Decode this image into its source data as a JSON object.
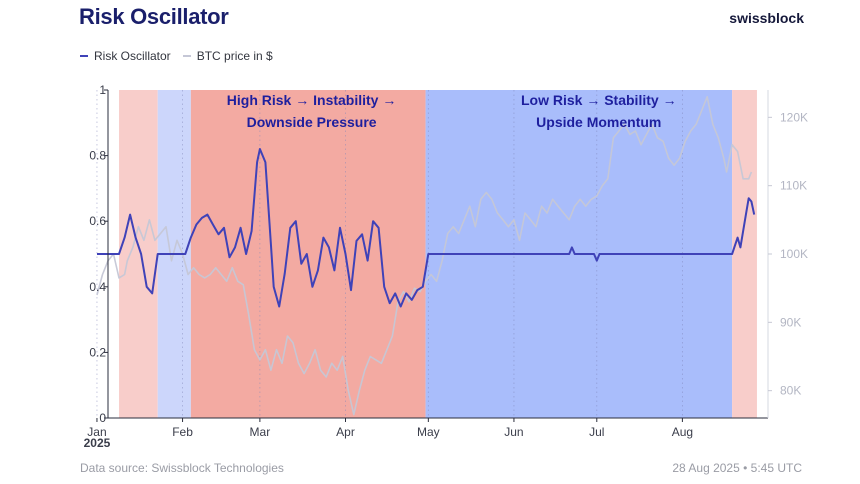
{
  "header": {
    "title": "Risk Oscillator",
    "brand": "swissblock"
  },
  "legend": [
    {
      "label": "Risk Oscillator",
      "color": "#3f42b8"
    },
    {
      "label": "BTC price in $",
      "color": "#c5c7d6"
    }
  ],
  "footer": {
    "source": "Data source: Swissblock Technologies",
    "timestamp": "28 Aug 2025 • 5:45 UTC"
  },
  "chart_data": {
    "type": "line",
    "title": "Risk Oscillator",
    "x_range": [
      "2025-01-01",
      "2025-08-28"
    ],
    "y_left": {
      "min": 0,
      "max": 1,
      "ticks": [
        0,
        0.2,
        0.4,
        0.6,
        0.8,
        1
      ],
      "tick_labels": [
        "0",
        "0.2",
        "0.4",
        "0.6",
        "0.8",
        "1"
      ]
    },
    "y_right": {
      "min": 76000,
      "max": 124000,
      "ticks": [
        80000,
        90000,
        100000,
        110000,
        120000
      ],
      "tick_labels": [
        "80K",
        "90K",
        "100K",
        "110K",
        "120K"
      ]
    },
    "x_ticks": [
      {
        "day": 0,
        "label": "Jan",
        "sub": "2025"
      },
      {
        "day": 31,
        "label": "Feb"
      },
      {
        "day": 59,
        "label": "Mar"
      },
      {
        "day": 90,
        "label": "Apr"
      },
      {
        "day": 120,
        "label": "May"
      },
      {
        "day": 151,
        "label": "Jun"
      },
      {
        "day": 181,
        "label": "Jul"
      },
      {
        "day": 212,
        "label": "Aug"
      }
    ],
    "regimes": [
      {
        "start": 0,
        "end": 8,
        "color": "#ccd6fb"
      },
      {
        "start": 8,
        "end": 22,
        "color": "#f8cdca"
      },
      {
        "start": 22,
        "end": 34,
        "color": "#ccd6fb"
      },
      {
        "start": 34,
        "end": 119,
        "color": "#f3aaa2"
      },
      {
        "start": 119,
        "end": 230,
        "color": "#a9bdfb"
      },
      {
        "start": 230,
        "end": 239,
        "color": "#f8cdca"
      }
    ],
    "annotations": [
      {
        "lines": [
          "High Risk → Instability →",
          "Downside Pressure"
        ],
        "center_day": 77,
        "color": "#1e1f9e"
      },
      {
        "lines": [
          "Low Risk → Stability →",
          "Upside Momentum"
        ],
        "center_day": 181,
        "color": "#1e1f9e"
      }
    ],
    "series": [
      {
        "name": "Risk Oscillator",
        "axis": "left",
        "color": "#3f42b8",
        "points": [
          [
            0,
            0.5
          ],
          [
            8,
            0.5
          ],
          [
            10,
            0.55
          ],
          [
            12,
            0.62
          ],
          [
            14,
            0.55
          ],
          [
            16,
            0.5
          ],
          [
            18,
            0.4
          ],
          [
            20,
            0.38
          ],
          [
            22,
            0.5
          ],
          [
            32,
            0.5
          ],
          [
            34,
            0.55
          ],
          [
            36,
            0.59
          ],
          [
            38,
            0.61
          ],
          [
            40,
            0.62
          ],
          [
            42,
            0.59
          ],
          [
            44,
            0.56
          ],
          [
            46,
            0.58
          ],
          [
            48,
            0.49
          ],
          [
            50,
            0.52
          ],
          [
            52,
            0.58
          ],
          [
            54,
            0.5
          ],
          [
            56,
            0.57
          ],
          [
            58,
            0.78
          ],
          [
            59,
            0.82
          ],
          [
            61,
            0.78
          ],
          [
            63,
            0.53
          ],
          [
            64,
            0.4
          ],
          [
            66,
            0.34
          ],
          [
            68,
            0.44
          ],
          [
            70,
            0.58
          ],
          [
            72,
            0.6
          ],
          [
            74,
            0.47
          ],
          [
            76,
            0.5
          ],
          [
            78,
            0.4
          ],
          [
            80,
            0.45
          ],
          [
            82,
            0.55
          ],
          [
            84,
            0.52
          ],
          [
            86,
            0.45
          ],
          [
            88,
            0.58
          ],
          [
            90,
            0.5
          ],
          [
            92,
            0.39
          ],
          [
            94,
            0.54
          ],
          [
            96,
            0.56
          ],
          [
            98,
            0.48
          ],
          [
            100,
            0.6
          ],
          [
            102,
            0.58
          ],
          [
            104,
            0.4
          ],
          [
            106,
            0.35
          ],
          [
            108,
            0.38
          ],
          [
            110,
            0.34
          ],
          [
            112,
            0.38
          ],
          [
            114,
            0.36
          ],
          [
            116,
            0.39
          ],
          [
            118,
            0.4
          ],
          [
            120,
            0.5
          ],
          [
            171,
            0.5
          ],
          [
            172,
            0.52
          ],
          [
            173,
            0.5
          ],
          [
            180,
            0.5
          ],
          [
            181,
            0.48
          ],
          [
            182,
            0.5
          ],
          [
            230,
            0.5
          ],
          [
            232,
            0.55
          ],
          [
            233,
            0.52
          ],
          [
            235,
            0.62
          ],
          [
            236,
            0.67
          ],
          [
            237,
            0.66
          ],
          [
            238,
            0.62
          ]
        ]
      },
      {
        "name": "BTC price in $",
        "axis": "right",
        "color": "#c5c7d6",
        "points": [
          [
            0,
            94000
          ],
          [
            2,
            97000
          ],
          [
            4,
            99000
          ],
          [
            6,
            100000
          ],
          [
            8,
            96500
          ],
          [
            10,
            97000
          ],
          [
            11,
            99000
          ],
          [
            13,
            101000
          ],
          [
            15,
            104000
          ],
          [
            17,
            102000
          ],
          [
            19,
            105000
          ],
          [
            21,
            102000
          ],
          [
            23,
            103000
          ],
          [
            25,
            104000
          ],
          [
            27,
            99000
          ],
          [
            29,
            102000
          ],
          [
            31,
            100000
          ],
          [
            33,
            97000
          ],
          [
            35,
            98000
          ],
          [
            37,
            97000
          ],
          [
            39,
            96500
          ],
          [
            41,
            97000
          ],
          [
            43,
            98000
          ],
          [
            45,
            97000
          ],
          [
            47,
            96000
          ],
          [
            49,
            98000
          ],
          [
            51,
            96000
          ],
          [
            53,
            95500
          ],
          [
            55,
            91000
          ],
          [
            57,
            86000
          ],
          [
            59,
            84500
          ],
          [
            61,
            86000
          ],
          [
            63,
            83000
          ],
          [
            65,
            86000
          ],
          [
            67,
            84000
          ],
          [
            69,
            88000
          ],
          [
            71,
            87000
          ],
          [
            73,
            84000
          ],
          [
            75,
            82500
          ],
          [
            77,
            84000
          ],
          [
            79,
            86000
          ],
          [
            81,
            83000
          ],
          [
            83,
            82000
          ],
          [
            85,
            84000
          ],
          [
            87,
            83000
          ],
          [
            89,
            85000
          ],
          [
            91,
            80000
          ],
          [
            93,
            76500
          ],
          [
            95,
            80000
          ],
          [
            97,
            83000
          ],
          [
            99,
            85000
          ],
          [
            101,
            84500
          ],
          [
            103,
            84000
          ],
          [
            105,
            86000
          ],
          [
            107,
            88000
          ],
          [
            109,
            93000
          ],
          [
            111,
            94500
          ],
          [
            113,
            93000
          ],
          [
            115,
            95000
          ],
          [
            117,
            94500
          ],
          [
            119,
            96000
          ],
          [
            121,
            97000
          ],
          [
            123,
            96000
          ],
          [
            125,
            99000
          ],
          [
            127,
            103000
          ],
          [
            129,
            104000
          ],
          [
            131,
            103000
          ],
          [
            133,
            105000
          ],
          [
            135,
            107000
          ],
          [
            137,
            104000
          ],
          [
            139,
            108000
          ],
          [
            141,
            109000
          ],
          [
            143,
            108000
          ],
          [
            145,
            106000
          ],
          [
            147,
            105000
          ],
          [
            149,
            104000
          ],
          [
            151,
            105000
          ],
          [
            153,
            102000
          ],
          [
            155,
            106000
          ],
          [
            157,
            105000
          ],
          [
            159,
            104000
          ],
          [
            161,
            107000
          ],
          [
            163,
            106000
          ],
          [
            165,
            108000
          ],
          [
            167,
            107000
          ],
          [
            169,
            106000
          ],
          [
            171,
            105000
          ],
          [
            173,
            107000
          ],
          [
            175,
            108000
          ],
          [
            177,
            107000
          ],
          [
            179,
            108000
          ],
          [
            181,
            108500
          ],
          [
            183,
            110000
          ],
          [
            185,
            111000
          ],
          [
            187,
            117000
          ],
          [
            189,
            118000
          ],
          [
            191,
            119000
          ],
          [
            193,
            117500
          ],
          [
            195,
            118000
          ],
          [
            197,
            116000
          ],
          [
            199,
            117500
          ],
          [
            201,
            119000
          ],
          [
            203,
            117000
          ],
          [
            205,
            116500
          ],
          [
            207,
            114000
          ],
          [
            209,
            113000
          ],
          [
            211,
            114000
          ],
          [
            213,
            116500
          ],
          [
            215,
            118000
          ],
          [
            217,
            119000
          ],
          [
            219,
            121000
          ],
          [
            221,
            123000
          ],
          [
            223,
            119000
          ],
          [
            225,
            117000
          ],
          [
            227,
            114000
          ],
          [
            228,
            112000
          ],
          [
            230,
            116000
          ],
          [
            232,
            115000
          ],
          [
            234,
            111000
          ],
          [
            236,
            111000
          ],
          [
            237,
            112000
          ]
        ]
      }
    ]
  }
}
